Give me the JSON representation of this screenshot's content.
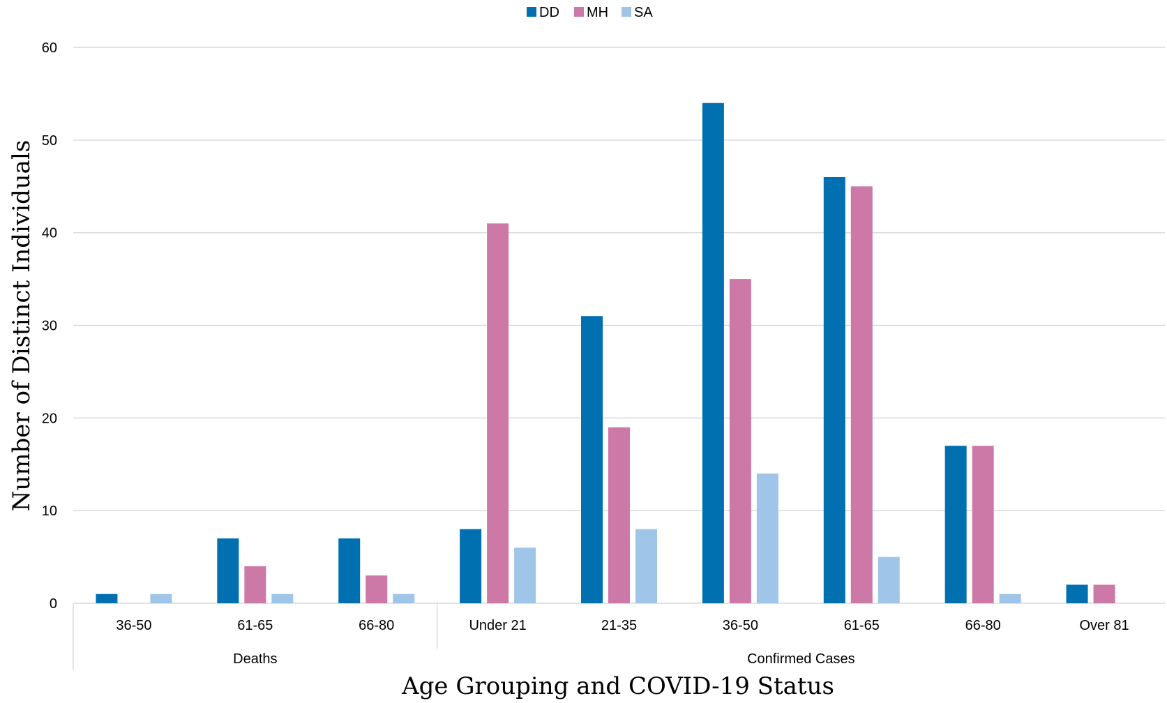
{
  "chart_data": {
    "type": "bar",
    "title": "",
    "xlabel": "Age Grouping and COVID-19 Status",
    "ylabel": "Number of Distinct Individuals",
    "ylim": [
      0,
      60
    ],
    "yticks": [
      0,
      10,
      20,
      30,
      40,
      50,
      60
    ],
    "grid": true,
    "legend_position": "top-center",
    "groups": [
      {
        "label": "Deaths",
        "categories": [
          "36-50",
          "61-65",
          "66-80"
        ]
      },
      {
        "label": "Confirmed Cases",
        "categories": [
          "Under 21",
          "21-35",
          "36-50",
          "61-65",
          "66-80",
          "Over 81"
        ]
      }
    ],
    "categories": [
      "36-50",
      "61-65",
      "66-80",
      "Under 21",
      "21-35",
      "36-50",
      "61-65",
      "66-80",
      "Over 81"
    ],
    "series": [
      {
        "name": "DD",
        "color": "#0070b0",
        "values": [
          1,
          7,
          7,
          8,
          31,
          54,
          46,
          17,
          2
        ]
      },
      {
        "name": "MH",
        "color": "#cc79a7",
        "values": [
          0,
          4,
          3,
          41,
          19,
          35,
          45,
          17,
          2
        ]
      },
      {
        "name": "SA",
        "color": "#9fc5e8",
        "values": [
          1,
          1,
          1,
          6,
          8,
          14,
          5,
          1,
          0
        ]
      }
    ]
  }
}
